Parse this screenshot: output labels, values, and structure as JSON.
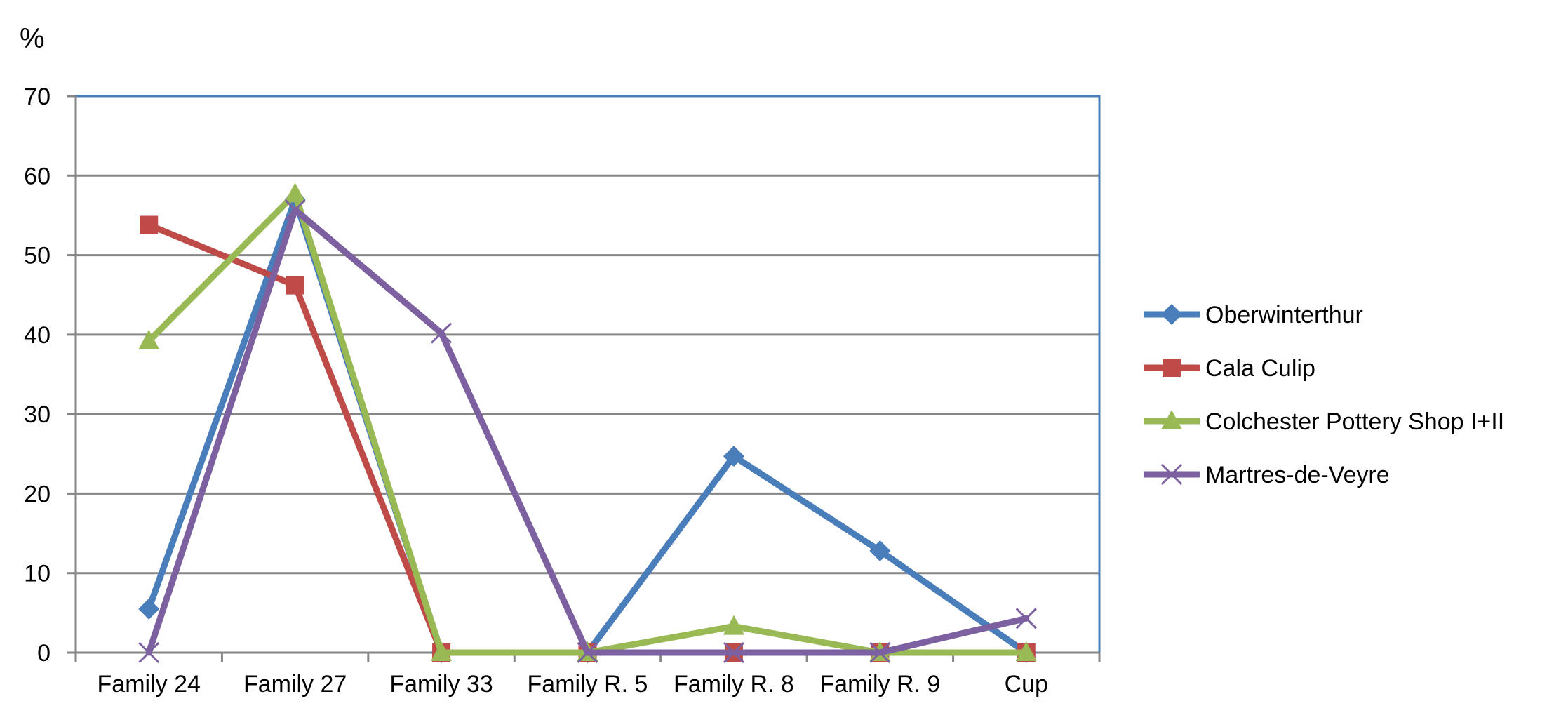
{
  "chart_data": {
    "type": "line",
    "title": "",
    "xlabel": "",
    "ylabel": "%",
    "ylim": [
      0,
      70
    ],
    "yticks": [
      0,
      10,
      20,
      30,
      40,
      50,
      60,
      70
    ],
    "grid": true,
    "legend_position": "right",
    "categories": [
      "Family 24",
      "Family 27",
      "Family 33",
      "Family R. 5",
      "Family R. 8",
      "Family R. 9",
      "Cup"
    ],
    "series": [
      {
        "name": "Oberwinterthur",
        "color": "#4a7ebb",
        "marker": "diamond",
        "values": [
          5.5,
          57,
          0,
          0,
          24.7,
          12.8,
          0
        ]
      },
      {
        "name": "Cala Culip",
        "color": "#be4b48",
        "marker": "square",
        "values": [
          53.8,
          46.2,
          0,
          0,
          0,
          0,
          0
        ]
      },
      {
        "name": "Colchester Pottery Shop I+II",
        "color": "#98b954",
        "marker": "triangle",
        "values": [
          39.2,
          57.7,
          0,
          0,
          3.3,
          0,
          0
        ]
      },
      {
        "name": "Martres-de-Veyre",
        "color": "#7d60a0",
        "marker": "x",
        "values": [
          0,
          55.7,
          40.2,
          0,
          0,
          0,
          4.3
        ]
      }
    ]
  }
}
